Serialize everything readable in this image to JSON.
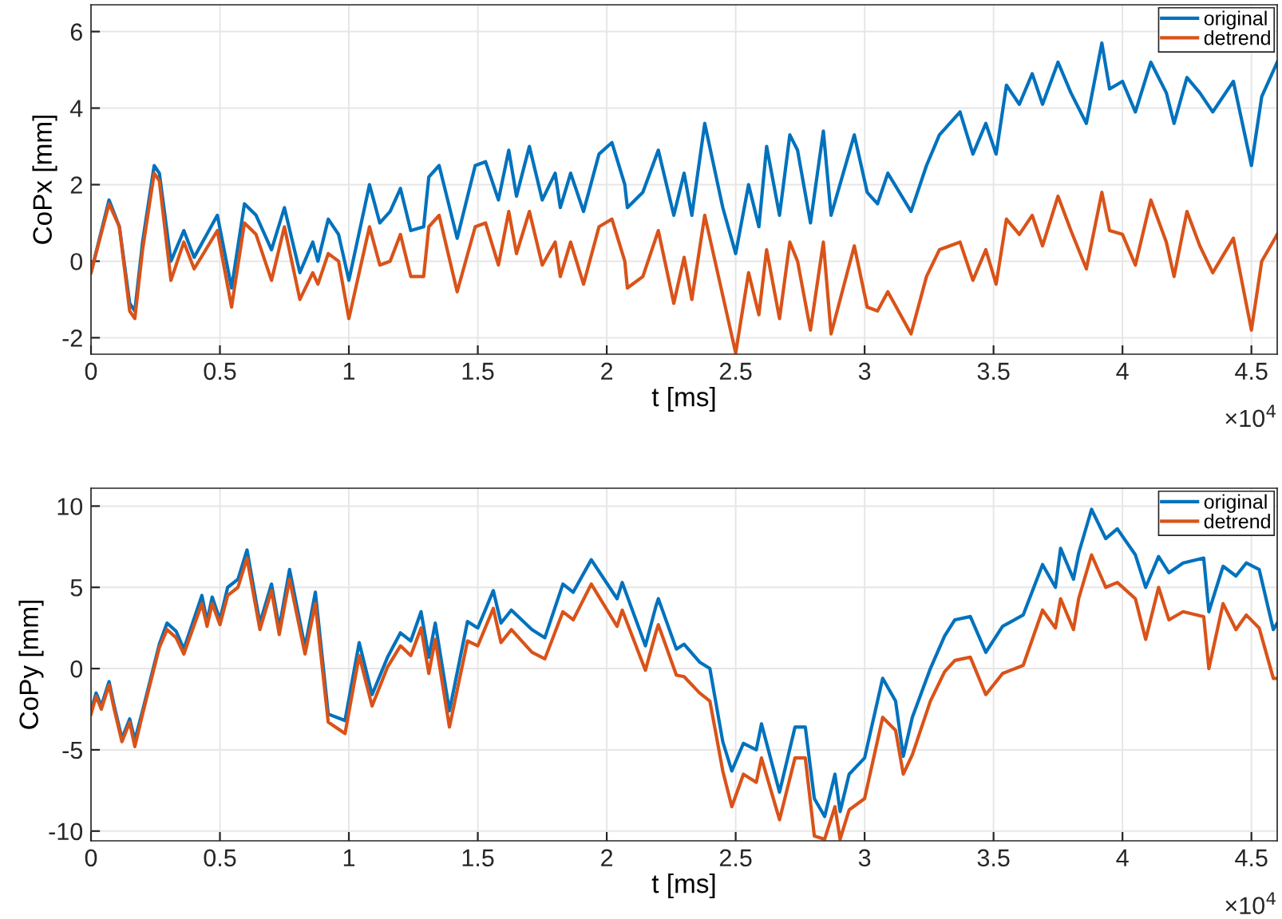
{
  "chart_data": [
    {
      "type": "line",
      "xlabel": "t [ms]",
      "ylabel": "CoPx [mm]",
      "annotations": [
        "×10$^{4}$"
      ],
      "x": [
        0,
        0.07,
        0.11,
        0.15,
        0.17,
        0.2,
        0.245,
        0.265,
        0.31,
        0.36,
        0.4,
        0.49,
        0.545,
        0.595,
        0.64,
        0.7,
        0.75,
        0.81,
        0.86,
        0.88,
        0.92,
        0.96,
        1.0,
        1.08,
        1.12,
        1.16,
        1.2,
        1.24,
        1.29,
        1.31,
        1.35,
        1.42,
        1.49,
        1.53,
        1.58,
        1.62,
        1.65,
        1.7,
        1.75,
        1.8,
        1.82,
        1.86,
        1.91,
        1.97,
        2.02,
        2.07,
        2.08,
        2.14,
        2.2,
        2.26,
        2.3,
        2.33,
        2.38,
        2.45,
        2.5,
        2.55,
        2.59,
        2.62,
        2.67,
        2.71,
        2.74,
        2.79,
        2.84,
        2.87,
        2.96,
        3.01,
        3.05,
        3.09,
        3.18,
        3.24,
        3.29,
        3.37,
        3.42,
        3.47,
        3.51,
        3.55,
        3.6,
        3.65,
        3.69,
        3.75,
        3.8,
        3.86,
        3.92,
        3.95,
        4.0,
        4.05,
        4.11,
        4.17,
        4.2,
        4.25,
        4.3,
        4.35,
        4.43,
        4.5,
        4.54,
        4.6
      ],
      "series": [
        {
          "name": "original",
          "color": "#0072bd",
          "values": [
            -0.3,
            1.6,
            0.9,
            -1.1,
            -1.3,
            0.5,
            2.5,
            2.3,
            0.0,
            0.8,
            0.1,
            1.2,
            -0.7,
            1.5,
            1.2,
            0.3,
            1.4,
            -0.3,
            0.5,
            0.0,
            1.1,
            0.7,
            -0.5,
            2.0,
            1.0,
            1.3,
            1.9,
            0.8,
            0.9,
            2.2,
            2.5,
            0.6,
            2.5,
            2.6,
            1.6,
            2.9,
            1.7,
            3.0,
            1.6,
            2.3,
            1.4,
            2.3,
            1.3,
            2.8,
            3.1,
            2.0,
            1.4,
            1.8,
            2.9,
            1.2,
            2.3,
            1.2,
            3.6,
            1.4,
            0.2,
            2.0,
            0.9,
            3.0,
            1.2,
            3.3,
            2.9,
            1.0,
            3.4,
            1.2,
            3.3,
            1.8,
            1.5,
            2.3,
            1.3,
            2.5,
            3.3,
            3.9,
            2.8,
            3.6,
            2.8,
            4.6,
            4.1,
            4.9,
            4.1,
            5.2,
            4.4,
            3.6,
            5.7,
            4.5,
            4.7,
            3.9,
            5.2,
            4.4,
            3.6,
            4.8,
            4.4,
            3.9,
            4.7,
            2.5,
            4.3,
            5.2
          ]
        },
        {
          "name": "detrend",
          "color": "#d95319",
          "values": [
            -0.3,
            1.5,
            0.9,
            -1.3,
            -1.5,
            0.3,
            2.3,
            2.1,
            -0.5,
            0.5,
            -0.2,
            0.8,
            -1.2,
            1.0,
            0.7,
            -0.5,
            0.9,
            -1.0,
            -0.3,
            -0.6,
            0.2,
            0.0,
            -1.5,
            0.9,
            -0.1,
            0.0,
            0.7,
            -0.4,
            -0.4,
            0.9,
            1.2,
            -0.8,
            0.9,
            1.0,
            -0.1,
            1.3,
            0.2,
            1.3,
            -0.1,
            0.5,
            -0.4,
            0.5,
            -0.6,
            0.9,
            1.1,
            0.0,
            -0.7,
            -0.4,
            0.8,
            -1.1,
            0.1,
            -1.0,
            1.2,
            -0.9,
            -2.4,
            -0.3,
            -1.4,
            0.3,
            -1.5,
            0.5,
            0.0,
            -1.8,
            0.5,
            -1.9,
            0.4,
            -1.2,
            -1.3,
            -0.8,
            -1.9,
            -0.4,
            0.3,
            0.5,
            -0.5,
            0.3,
            -0.6,
            1.1,
            0.7,
            1.2,
            0.4,
            1.7,
            0.8,
            -0.2,
            1.8,
            0.8,
            0.7,
            -0.1,
            1.6,
            0.5,
            -0.4,
            1.3,
            0.4,
            -0.3,
            0.6,
            -1.8,
            0.0,
            0.7
          ]
        }
      ],
      "xlim": [
        0,
        4.6
      ],
      "ylim": [
        -2.43,
        6.7
      ],
      "xticks": [
        0,
        0.5,
        1,
        1.5,
        2,
        2.5,
        3,
        3.5,
        4,
        4.5
      ],
      "yticks": [
        -2,
        0,
        2,
        4,
        6
      ],
      "grid": true,
      "legend": "top right",
      "marker": "none",
      "line_style": "solid"
    },
    {
      "type": "line",
      "xlabel": "t [ms]",
      "ylabel": "CoPy [mm]",
      "annotations": [
        "×10$^{4}$"
      ],
      "x": [
        0,
        0.02,
        0.04,
        0.07,
        0.09,
        0.12,
        0.15,
        0.17,
        0.2,
        0.265,
        0.295,
        0.33,
        0.36,
        0.43,
        0.45,
        0.47,
        0.5,
        0.53,
        0.57,
        0.605,
        0.655,
        0.7,
        0.73,
        0.77,
        0.83,
        0.87,
        0.92,
        0.985,
        1.04,
        1.09,
        1.15,
        1.2,
        1.24,
        1.28,
        1.31,
        1.335,
        1.39,
        1.46,
        1.5,
        1.56,
        1.59,
        1.63,
        1.71,
        1.76,
        1.83,
        1.87,
        1.94,
        2.04,
        2.06,
        2.15,
        2.19,
        2.2,
        2.27,
        2.3,
        2.36,
        2.4,
        2.45,
        2.485,
        2.53,
        2.58,
        2.6,
        2.67,
        2.73,
        2.77,
        2.805,
        2.845,
        2.885,
        2.905,
        2.94,
        3.0,
        3.07,
        3.12,
        3.15,
        3.185,
        3.255,
        3.31,
        3.35,
        3.41,
        3.47,
        3.535,
        3.615,
        3.69,
        3.74,
        3.76,
        3.81,
        3.83,
        3.88,
        3.935,
        3.98,
        4.05,
        4.09,
        4.14,
        4.18,
        4.235,
        4.315,
        4.335,
        4.39,
        4.44,
        4.48,
        4.53,
        4.585,
        4.6
      ],
      "series": [
        {
          "name": "original",
          "color": "#0072bd",
          "values": [
            -2.6,
            -1.5,
            -2.3,
            -0.8,
            -2.3,
            -4.3,
            -3.1,
            -4.4,
            -2.6,
            1.5,
            2.8,
            2.3,
            1.2,
            4.5,
            2.9,
            4.4,
            3.0,
            5.0,
            5.5,
            7.3,
            2.8,
            5.2,
            2.5,
            6.1,
            1.3,
            4.7,
            -2.8,
            -3.2,
            1.6,
            -1.6,
            0.7,
            2.2,
            1.7,
            3.5,
            0.7,
            2.8,
            -2.6,
            2.9,
            2.5,
            4.8,
            2.8,
            3.6,
            2.4,
            1.9,
            5.2,
            4.7,
            6.7,
            4.3,
            5.3,
            1.4,
            3.8,
            4.3,
            1.2,
            1.5,
            0.4,
            0.0,
            -4.5,
            -6.3,
            -4.6,
            -5.0,
            -3.4,
            -7.6,
            -3.6,
            -3.6,
            -8.0,
            -9.1,
            -6.5,
            -8.8,
            -6.5,
            -5.5,
            -0.6,
            -2.0,
            -5.4,
            -3.0,
            0.0,
            2.0,
            3.0,
            3.2,
            1.0,
            2.6,
            3.3,
            6.4,
            5.0,
            7.4,
            5.5,
            7.1,
            9.8,
            8.0,
            8.6,
            7.0,
            5.0,
            6.9,
            5.9,
            6.5,
            6.8,
            3.5,
            6.3,
            5.7,
            6.5,
            6.1,
            2.4,
            2.8
          ]
        },
        {
          "name": "detrend",
          "color": "#d95319",
          "values": [
            -2.8,
            -1.7,
            -2.5,
            -1.0,
            -2.5,
            -4.5,
            -3.3,
            -4.8,
            -2.8,
            1.3,
            2.4,
            1.9,
            0.9,
            4.0,
            2.6,
            4.0,
            2.7,
            4.5,
            5.0,
            6.8,
            2.4,
            4.8,
            2.1,
            5.5,
            0.9,
            4.0,
            -3.3,
            -4.0,
            0.8,
            -2.3,
            0.1,
            1.4,
            0.8,
            2.5,
            -0.3,
            1.8,
            -3.6,
            1.7,
            1.4,
            3.7,
            1.6,
            2.4,
            1.0,
            0.6,
            3.5,
            3.0,
            5.2,
            2.6,
            3.6,
            -0.1,
            2.2,
            2.7,
            -0.4,
            -0.5,
            -1.5,
            -2.0,
            -6.3,
            -8.5,
            -6.5,
            -7.0,
            -5.5,
            -9.3,
            -5.5,
            -5.5,
            -10.3,
            -10.5,
            -8.5,
            -10.5,
            -8.7,
            -8.0,
            -3.0,
            -3.8,
            -6.5,
            -5.3,
            -2.0,
            -0.2,
            0.5,
            0.7,
            -1.6,
            -0.3,
            0.2,
            3.6,
            2.5,
            4.3,
            2.4,
            4.3,
            7.0,
            5.0,
            5.3,
            4.3,
            1.8,
            5.0,
            3.0,
            3.5,
            3.2,
            0.0,
            4.0,
            2.4,
            3.3,
            2.5,
            -0.6,
            -0.6
          ]
        }
      ],
      "xlim": [
        0,
        4.6
      ],
      "ylim": [
        -10.6,
        11.1
      ],
      "xticks": [
        0,
        0.5,
        1,
        1.5,
        2,
        2.5,
        3,
        3.5,
        4,
        4.5
      ],
      "yticks": [
        -10,
        -5,
        0,
        5,
        10
      ],
      "grid": true,
      "legend": "top right",
      "marker": "none",
      "line_style": "solid"
    }
  ]
}
